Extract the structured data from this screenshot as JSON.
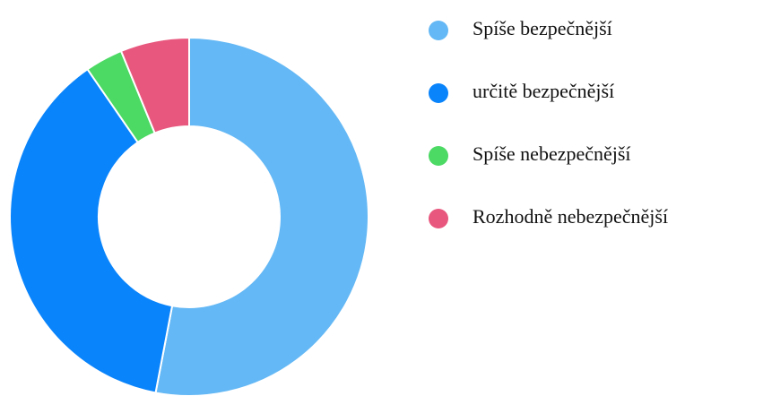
{
  "chart_data": {
    "type": "donut",
    "categories": [
      "Spíše bezpečnější",
      "určitě bezpečnější",
      "Spíše nebezpečnější",
      "Rozhodně nebezpečnější"
    ],
    "values": [
      53,
      37.4,
      3.4,
      6.2
    ],
    "colors": [
      "#64b8f5",
      "#0a84fb",
      "#4cd964",
      "#e8577e"
    ],
    "legend": "right"
  }
}
